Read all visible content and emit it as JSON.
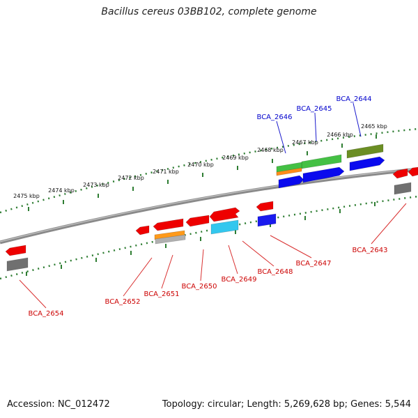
{
  "title": "Bacillus cereus 03BB102, complete genome",
  "footer": {
    "accession": "Accession: NC_012472",
    "summary": "Topology: circular; Length: 5,269,628 bp; Genes: 5,544"
  },
  "colors": {
    "backbone": "#8a8a8a",
    "ruler": "#2e7d32",
    "label_forward": "#0000cc",
    "label_reverse": "#cc0000",
    "label_line_forward": "#1a1acc",
    "label_line_reverse": "#d93030"
  },
  "ruler_labels": [
    "2465 kbp",
    "2466 kbp",
    "2467 kbp",
    "2468 kbp",
    "2469 kbp",
    "2470 kbp",
    "2471 kbp",
    "2472 kbp",
    "2473 kbp",
    "2474 kbp",
    "2475 kbp"
  ],
  "forward_gene_labels": [
    "BCA_2644",
    "BCA_2645",
    "BCA_2646"
  ],
  "reverse_gene_labels": [
    "BCA_2643",
    "BCA_2647",
    "BCA_2648",
    "BCA_2649",
    "BCA_2650",
    "BCA_2651",
    "BCA_2652",
    "BCA_2654"
  ],
  "features": {
    "forward": [
      {
        "color": "#6b8e23"
      },
      {
        "color": "#44c044"
      },
      {
        "color": "#ff8c1a"
      },
      {
        "color": "#0a0aee"
      },
      {
        "color": "#0a0aee"
      },
      {
        "color": "#0a0aee"
      }
    ],
    "reverse": [
      {
        "color": "#ee0000"
      },
      {
        "color": "#ee0000"
      },
      {
        "color": "#ee0000"
      },
      {
        "color": "#ee0000"
      },
      {
        "color": "#ee0000"
      },
      {
        "color": "#ee0000"
      },
      {
        "color": "#ee0000"
      },
      {
        "color": "#ee0000"
      },
      {
        "color": "#1a1aee"
      },
      {
        "color": "#33c7ee"
      },
      {
        "color": "#ff9a1a"
      },
      {
        "color": "#b0b0b0"
      },
      {
        "color": "#707070"
      },
      {
        "color": "#707070"
      }
    ]
  }
}
